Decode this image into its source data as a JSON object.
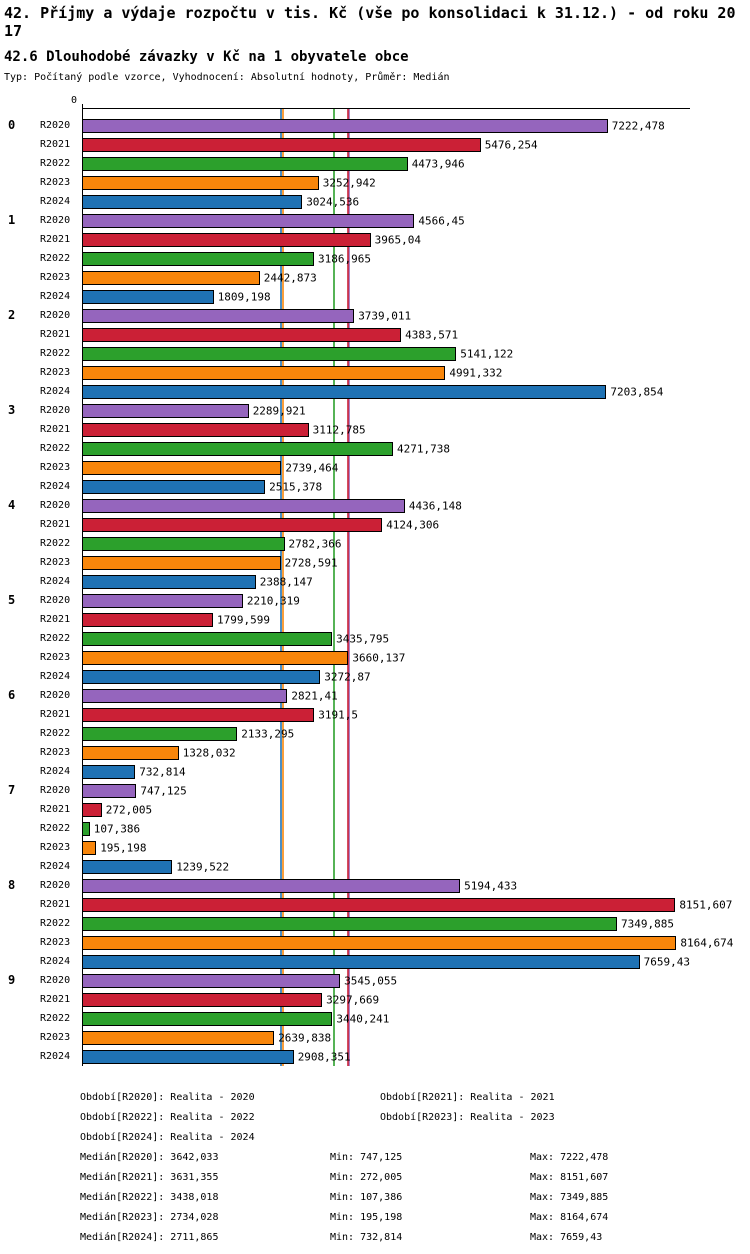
{
  "header": {
    "title": "42. Příjmy a výdaje rozpočtu v tis. Kč (vše po konsolidaci k 31.12.) - od roku 2017",
    "subtitle": "42.6 Dlouhodobé závazky v Kč na 1 obyvatele obce",
    "meta": "Typ: Počítaný podle vzorce, Vyhodnocení: Absolutní hodnoty, Průměr: Medián"
  },
  "chart_data": {
    "type": "bar",
    "orientation": "horizontal",
    "title": "42.6 Dlouhodobé závazky v Kč na 1 obyvatele obce",
    "axis_origin_label": "0",
    "xlim": [
      0,
      8352
    ],
    "grid": false,
    "legend_position": "bottom",
    "groups": [
      "0",
      "1",
      "2",
      "3",
      "4",
      "5",
      "6",
      "7",
      "8",
      "9"
    ],
    "series": [
      {
        "name": "R2020",
        "color": "#9565bd",
        "median": 3642.033,
        "values": [
          7222.478,
          4566.45,
          3739.011,
          2289.921,
          4436.148,
          2210.319,
          2821.41,
          747.125,
          5194.433,
          3545.055
        ],
        "labels": [
          "7222,478",
          "4566,45",
          "3739,011",
          "2289,921",
          "4436,148",
          "2210,319",
          "2821,41",
          "747,125",
          "5194,433",
          "3545,055"
        ]
      },
      {
        "name": "R2021",
        "color": "#cb2036",
        "median": 3631.355,
        "values": [
          5476.254,
          3965.04,
          4383.571,
          3112.785,
          4124.306,
          1799.599,
          3191.5,
          272.005,
          8151.607,
          3297.669
        ],
        "labels": [
          "5476,254",
          "3965,04",
          "4383,571",
          "3112,785",
          "4124,306",
          "1799,599",
          "3191,5",
          "272,005",
          "8151,607",
          "3297,669"
        ]
      },
      {
        "name": "R2022",
        "color": "#2ca02c",
        "median": 3438.018,
        "values": [
          4473.946,
          3186.965,
          5141.122,
          4271.738,
          2782.366,
          3435.795,
          2133.295,
          107.386,
          7349.885,
          3440.241
        ],
        "labels": [
          "4473,946",
          "3186,965",
          "5141,122",
          "4271,738",
          "2782,366",
          "3435,795",
          "2133,295",
          "107,386",
          "7349,885",
          "3440,241"
        ]
      },
      {
        "name": "R2023",
        "color": "#f8860b",
        "median": 2734.028,
        "values": [
          3252.942,
          2442.873,
          4991.332,
          2739.464,
          2728.591,
          3660.137,
          1328.032,
          195.198,
          8164.674,
          2639.838
        ],
        "labels": [
          "3252,942",
          "2442,873",
          "4991,332",
          "2739,464",
          "2728,591",
          "3660,137",
          "1328,032",
          "195,198",
          "8164,674",
          "2639,838"
        ]
      },
      {
        "name": "R2024",
        "color": "#1f72b4",
        "median": 2711.865,
        "values": [
          3024.536,
          1809.198,
          7203.854,
          2515.378,
          2388.147,
          3272.87,
          732.814,
          1239.522,
          7659.43,
          2908.351
        ],
        "labels": [
          "3024,536",
          "1809,198",
          "7203,854",
          "2515,378",
          "2388,147",
          "3272,87",
          "732,814",
          "1239,522",
          "7659,43",
          "2908,351"
        ]
      }
    ]
  },
  "legend": {
    "items": [
      "Období[R2020]: Realita - 2020",
      "Období[R2021]: Realita - 2021",
      "Období[R2022]: Realita - 2022",
      "Období[R2023]: Realita - 2023",
      "Období[R2024]: Realita - 2024"
    ]
  },
  "stats": {
    "rows": [
      {
        "median": "Medián[R2020]: 3642,033",
        "min": "Min: 747,125",
        "max": "Max: 7222,478"
      },
      {
        "median": "Medián[R2021]: 3631,355",
        "min": "Min: 272,005",
        "max": "Max: 8151,607"
      },
      {
        "median": "Medián[R2022]: 3438,018",
        "min": "Min: 107,386",
        "max": "Max: 7349,885"
      },
      {
        "median": "Medián[R2023]: 2734,028",
        "min": "Min: 195,198",
        "max": "Max: 8164,674"
      },
      {
        "median": "Medián[R2024]: 2711,865",
        "min": "Min: 732,814",
        "max": "Max: 7659,43"
      }
    ]
  }
}
